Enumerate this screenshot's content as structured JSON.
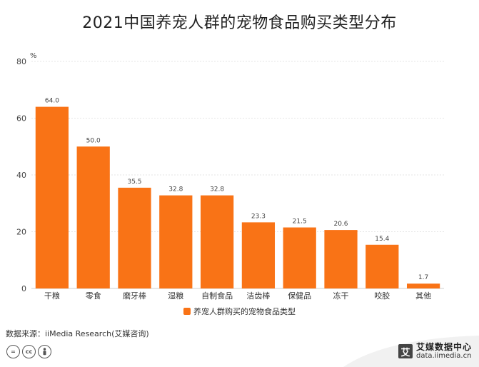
{
  "title": "2021中国养宠人群的宠物食品购买类型分布",
  "chart_data": {
    "type": "bar",
    "unit": "%",
    "ylim": [
      0,
      80
    ],
    "yticks": [
      0,
      20,
      40,
      60,
      80
    ],
    "categories": [
      "干粮",
      "零食",
      "磨牙棒",
      "湿粮",
      "自制食品",
      "洁齿棒",
      "保健品",
      "冻干",
      "咬胶",
      "其他"
    ],
    "series": [
      {
        "name": "养宠人群购买的宠物食品类型",
        "values": [
          64.0,
          50.0,
          35.5,
          32.8,
          32.8,
          23.3,
          21.5,
          20.6,
          15.4,
          1.7
        ],
        "labels": [
          "64.0",
          "50.0",
          "35.5",
          "32.8",
          "32.8",
          "23.3",
          "21.5",
          "20.6",
          "15.4",
          "1.7"
        ]
      }
    ],
    "grid": true,
    "legend": "bottom"
  },
  "colors": {
    "bar": "#f97316",
    "grid": "#e6e6e6"
  },
  "source": "数据来源：iiMedia Research(艾媒咨询)",
  "license_icons": [
    "equals-icon",
    "cc-icon",
    "person-icon"
  ],
  "brand": {
    "name": "艾媒数据中心",
    "url": "data.iimedia.cn",
    "logo_char": "艾"
  }
}
